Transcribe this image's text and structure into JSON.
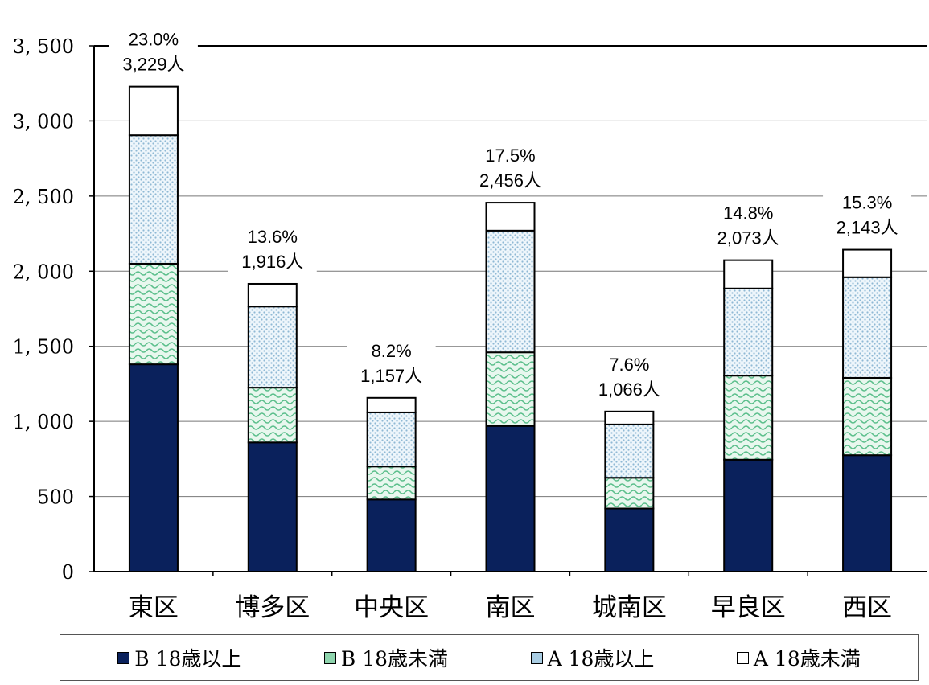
{
  "chart_data": {
    "type": "bar",
    "stacked": true,
    "categories": [
      "東区",
      "博多区",
      "中央区",
      "南区",
      "城南区",
      "早良区",
      "西区"
    ],
    "series": [
      {
        "name": "B  18歳以上",
        "color": "#0a215c",
        "pattern": "solid",
        "values": [
          1380,
          860,
          480,
          970,
          420,
          745,
          775
        ]
      },
      {
        "name": "B  18歳未満",
        "color": "#8ed4ad",
        "pattern": "wave",
        "values": [
          670,
          365,
          220,
          490,
          205,
          560,
          515
        ]
      },
      {
        "name": "A    18歳以上",
        "color": "#a9cde3",
        "pattern": "dots",
        "values": [
          855,
          540,
          360,
          810,
          355,
          580,
          670
        ]
      },
      {
        "name": "A  18歳未満",
        "color": "#ffffff",
        "pattern": "none",
        "values": [
          324,
          151,
          97,
          186,
          86,
          188,
          183
        ]
      }
    ],
    "totals": [
      3229,
      1916,
      1157,
      2456,
      1066,
      2073,
      2143
    ],
    "total_labels": [
      [
        "23.0%",
        "3,229人"
      ],
      [
        "13.6%",
        "1,916人"
      ],
      [
        "8.2%",
        "1,157人"
      ],
      [
        "17.5%",
        "2,456人"
      ],
      [
        "7.6%",
        "1,066人"
      ],
      [
        "14.8%",
        "2,073人"
      ],
      [
        "15.3%",
        "2,143人"
      ]
    ],
    "yticks": [
      "0",
      "500",
      "1, 000",
      "1, 500",
      "2, 000",
      "2, 500",
      "3, 000",
      "3, 500"
    ],
    "ylim": [
      0,
      3500
    ],
    "grid": true,
    "legend_position": "bottom"
  },
  "legend": {
    "items": [
      {
        "label": "B  18歳以上",
        "swatch": "#0a215c"
      },
      {
        "label": "B  18歳未満",
        "swatch": "#8ed4ad"
      },
      {
        "label": "A    18歳以上",
        "swatch": "#a9cde3"
      },
      {
        "label": "A  18歳未満",
        "swatch": "#ffffff"
      }
    ]
  }
}
